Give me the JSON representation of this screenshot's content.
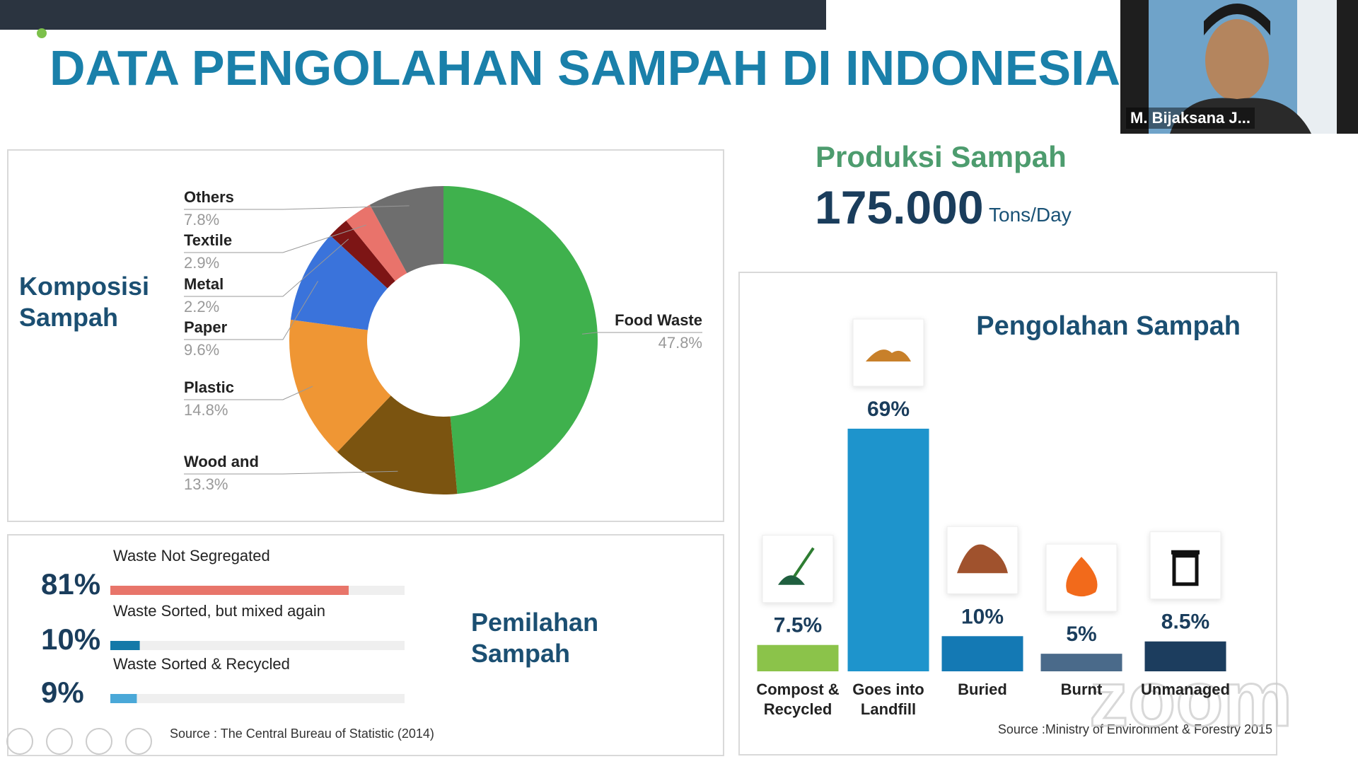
{
  "screen": {
    "slide_title": "DATA PENGOLAHAN SAMPAH DI INDONESIA",
    "production_label": "Produksi Sampah",
    "production_value": "175.000",
    "production_unit": "Tons/Day",
    "participant_name": "M. Bijaksana J...",
    "watermark": "zoom"
  },
  "chart_data": [
    {
      "type": "pie",
      "title": "Komposisi Sampah",
      "categories": [
        "Food Waste",
        "Wood and",
        "Plastic",
        "Paper",
        "Metal",
        "Textile",
        "Others"
      ],
      "values": [
        47.8,
        13.3,
        14.8,
        9.6,
        2.2,
        2.9,
        7.8
      ],
      "value_labels": [
        "47.8%",
        "13.3%",
        "14.8%",
        "9.6%",
        "2.2%",
        "2.9%",
        "7.8%"
      ],
      "colors": [
        "#3fb14d",
        "#7b5410",
        "#ef9634",
        "#3a73db",
        "#7d1515",
        "#e9736b",
        "#6e6e6e"
      ]
    },
    {
      "type": "progress",
      "title": "Pemilahan Sampah",
      "categories": [
        "Waste Not Segregated",
        "Waste Sorted, but mixed again",
        "Waste Sorted & Recycled"
      ],
      "values": [
        81,
        10,
        9
      ],
      "value_labels": [
        "81%",
        "10%",
        "9%"
      ],
      "colors": [
        "#e8756a",
        "#1479a8",
        "#4aa8d8"
      ],
      "source": "Source : The Central Bureau of Statistic (2014)"
    },
    {
      "type": "bar",
      "title": "Pengolahan Sampah",
      "categories": [
        "Compost & Recycled",
        "Goes into Landfill",
        "Buried",
        "Burnt",
        "Unmanaged"
      ],
      "values": [
        7.5,
        69,
        10,
        5,
        8.5
      ],
      "value_labels": [
        "7.5%",
        "69%",
        "10%",
        "5%",
        "8.5%"
      ],
      "colors": [
        "#8bc34a",
        "#1e94cc",
        "#1479b4",
        "#4a6a8a",
        "#1c3d5e"
      ],
      "source": "Source :Ministry of Environment & Forestry 2015"
    }
  ]
}
